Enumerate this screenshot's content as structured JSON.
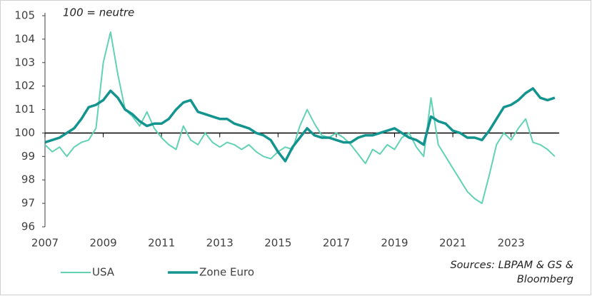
{
  "chart_data": {
    "type": "line",
    "annotation": "100 = neutre",
    "source": "Sources: LBPAM & GS & Bloomberg",
    "x": [
      2007.0,
      2007.25,
      2007.5,
      2007.75,
      2008.0,
      2008.25,
      2008.5,
      2008.75,
      2009.0,
      2009.25,
      2009.5,
      2009.75,
      2010.0,
      2010.25,
      2010.5,
      2010.75,
      2011.0,
      2011.25,
      2011.5,
      2011.75,
      2012.0,
      2012.25,
      2012.5,
      2012.75,
      2013.0,
      2013.25,
      2013.5,
      2013.75,
      2014.0,
      2014.25,
      2014.5,
      2014.75,
      2015.0,
      2015.25,
      2015.5,
      2015.75,
      2016.0,
      2016.25,
      2016.5,
      2016.75,
      2017.0,
      2017.25,
      2017.5,
      2017.75,
      2018.0,
      2018.25,
      2018.5,
      2018.75,
      2019.0,
      2019.25,
      2019.5,
      2019.75,
      2020.0,
      2020.25,
      2020.5,
      2020.75,
      2021.0,
      2021.25,
      2021.5,
      2021.75,
      2022.0,
      2022.25,
      2022.5,
      2022.75,
      2023.0,
      2023.25,
      2023.5,
      2023.75,
      2024.0,
      2024.25,
      2024.5
    ],
    "series": [
      {
        "name": "USA",
        "color": "#62d2b4",
        "width": 2,
        "values": [
          99.5,
          99.2,
          99.4,
          99.0,
          99.4,
          99.6,
          99.7,
          100.2,
          103.0,
          104.3,
          102.5,
          101.0,
          100.7,
          100.3,
          100.9,
          100.2,
          99.8,
          99.5,
          99.3,
          100.3,
          99.7,
          99.5,
          100.0,
          99.6,
          99.4,
          99.6,
          99.5,
          99.3,
          99.5,
          99.2,
          99.0,
          98.9,
          99.2,
          99.4,
          99.3,
          100.3,
          101.0,
          100.4,
          99.9,
          99.8,
          100.0,
          99.8,
          99.5,
          99.1,
          98.7,
          99.3,
          99.1,
          99.5,
          99.3,
          99.8,
          100.0,
          99.4,
          99.0,
          101.5,
          99.5,
          99.0,
          98.5,
          98.0,
          97.5,
          97.2,
          97.0,
          98.2,
          99.5,
          100.0,
          99.7,
          100.2,
          100.6,
          99.6,
          99.5,
          99.3,
          99.0
        ]
      },
      {
        "name": "Zone Euro",
        "color": "#13948f",
        "width": 3.5,
        "values": [
          99.6,
          99.7,
          99.8,
          100.0,
          100.2,
          100.6,
          101.1,
          101.2,
          101.4,
          101.8,
          101.5,
          101.0,
          100.8,
          100.5,
          100.3,
          100.4,
          100.4,
          100.6,
          101.0,
          101.3,
          101.4,
          100.9,
          100.8,
          100.7,
          100.6,
          100.6,
          100.4,
          100.3,
          100.2,
          100.0,
          99.9,
          99.7,
          99.2,
          98.8,
          99.4,
          99.8,
          100.2,
          99.9,
          99.8,
          99.8,
          99.7,
          99.6,
          99.6,
          99.8,
          99.9,
          99.9,
          100.0,
          100.1,
          100.2,
          100.0,
          99.8,
          99.7,
          99.5,
          100.7,
          100.5,
          100.4,
          100.1,
          100.0,
          99.8,
          99.8,
          99.7,
          100.1,
          100.6,
          101.1,
          101.2,
          101.4,
          101.7,
          101.9,
          101.5,
          101.4,
          101.5
        ]
      }
    ],
    "xlim": [
      2007,
      2024.65
    ],
    "xticks": [
      2007,
      2009,
      2011,
      2013,
      2015,
      2017,
      2019,
      2021,
      2023
    ],
    "ylim": [
      96,
      105
    ],
    "yticks": [
      96,
      97,
      98,
      99,
      100,
      101,
      102,
      103,
      104,
      105
    ],
    "reference_line": 100,
    "legend": "bottom-left"
  }
}
